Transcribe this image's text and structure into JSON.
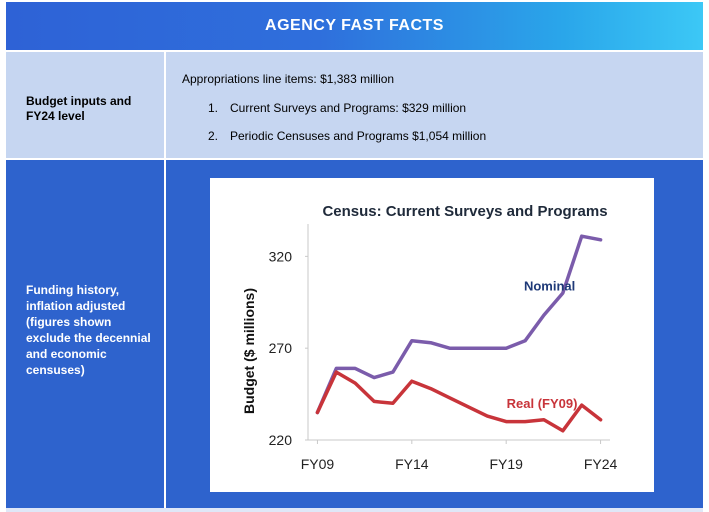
{
  "header": {
    "title": "AGENCY FAST FACTS"
  },
  "rows": [
    {
      "label": "Budget inputs and FY24 level",
      "main_line": "Appropriations line items: $1,383 million",
      "items": [
        {
          "num": "1.",
          "text": "Current Surveys and Programs: $329 million"
        },
        {
          "num": "2.",
          "text": "Periodic Censuses and Programs $1,054 million"
        }
      ]
    },
    {
      "label": "Funding history, inflation adjusted (figures shown exclude the decennial and economic censuses)"
    }
  ],
  "colors": {
    "header_start": "#2e62d6",
    "header_end": "#3cc8f6",
    "row1_bg": "#c6d6f1",
    "row2_bg": "#2e63cd",
    "nominal": "#7b5cab",
    "real": "#c8343a",
    "nominal_label": "#1f3a78",
    "real_label": "#c8343a"
  },
  "chart_data": {
    "type": "line",
    "title": "Census: Current Surveys and Programs",
    "xlabel": "",
    "ylabel": "Budget ($ millions)",
    "x": [
      2009,
      2010,
      2011,
      2012,
      2013,
      2014,
      2015,
      2016,
      2017,
      2018,
      2019,
      2020,
      2021,
      2022,
      2023,
      2024
    ],
    "x_ticks": [
      2009,
      2014,
      2019,
      2024
    ],
    "x_tick_labels": [
      "FY09",
      "FY14",
      "FY19",
      "FY24"
    ],
    "y_ticks": [
      220,
      270,
      320
    ],
    "ylim": [
      220,
      330
    ],
    "xlim": [
      2008.5,
      2024.5
    ],
    "series": [
      {
        "name": "Nominal",
        "values": [
          235,
          259,
          259,
          254,
          257,
          274,
          273,
          270,
          270,
          270,
          270,
          274,
          288,
          300,
          331,
          329
        ]
      },
      {
        "name": "Real (FY09)",
        "values": [
          235,
          257,
          251,
          241,
          240,
          252,
          248,
          243,
          238,
          233,
          230,
          230,
          231,
          225,
          239,
          231
        ]
      }
    ],
    "grid": false
  }
}
